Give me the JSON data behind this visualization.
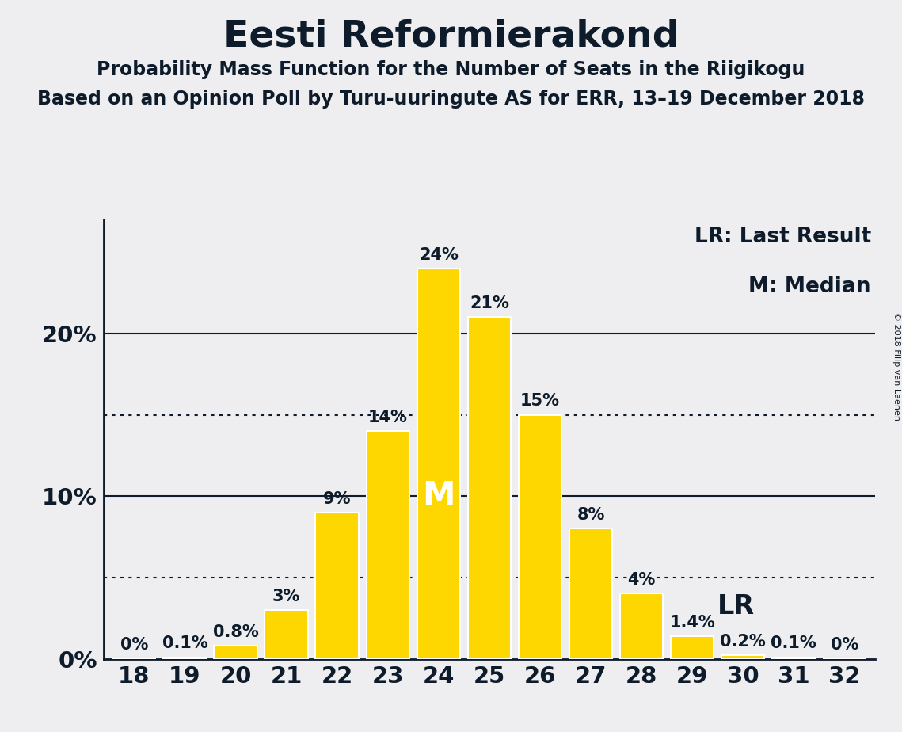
{
  "title": "Eesti Reformierakond",
  "subtitle": "Probability Mass Function for the Number of Seats in the Riigikogu",
  "subsubtitle": "Based on an Opinion Poll by Turu-uuringute AS for ERR, 13–19 December 2018",
  "copyright": "© 2018 Filip van Laenen",
  "seats": [
    18,
    19,
    20,
    21,
    22,
    23,
    24,
    25,
    26,
    27,
    28,
    29,
    30,
    31,
    32
  ],
  "probabilities": [
    0.0,
    0.1,
    0.8,
    3.0,
    9.0,
    14.0,
    24.0,
    21.0,
    15.0,
    8.0,
    4.0,
    1.4,
    0.2,
    0.1,
    0.0
  ],
  "labels": [
    "0%",
    "0.1%",
    "0.8%",
    "3%",
    "9%",
    "14%",
    "24%",
    "21%",
    "15%",
    "8%",
    "4%",
    "1.4%",
    "0.2%",
    "0.1%",
    "0%"
  ],
  "bar_color": "#FFD700",
  "bar_edge_color": "#FFFFFF",
  "background_color": "#EEEEF0",
  "text_color": "#0D1B2A",
  "median_seat": 24,
  "lr_seat": 29,
  "dotted_line_1": 5.0,
  "dotted_line_2": 15.0,
  "yticks": [
    0,
    10,
    20
  ],
  "ylim": [
    0,
    27
  ],
  "title_fontsize": 34,
  "subtitle_fontsize": 17,
  "subsubtitle_fontsize": 17,
  "axis_tick_fontsize": 21,
  "bar_label_fontsize": 15,
  "legend_fontsize": 19,
  "m_fontsize": 30,
  "lr_label_fontsize": 24,
  "copyright_fontsize": 8
}
